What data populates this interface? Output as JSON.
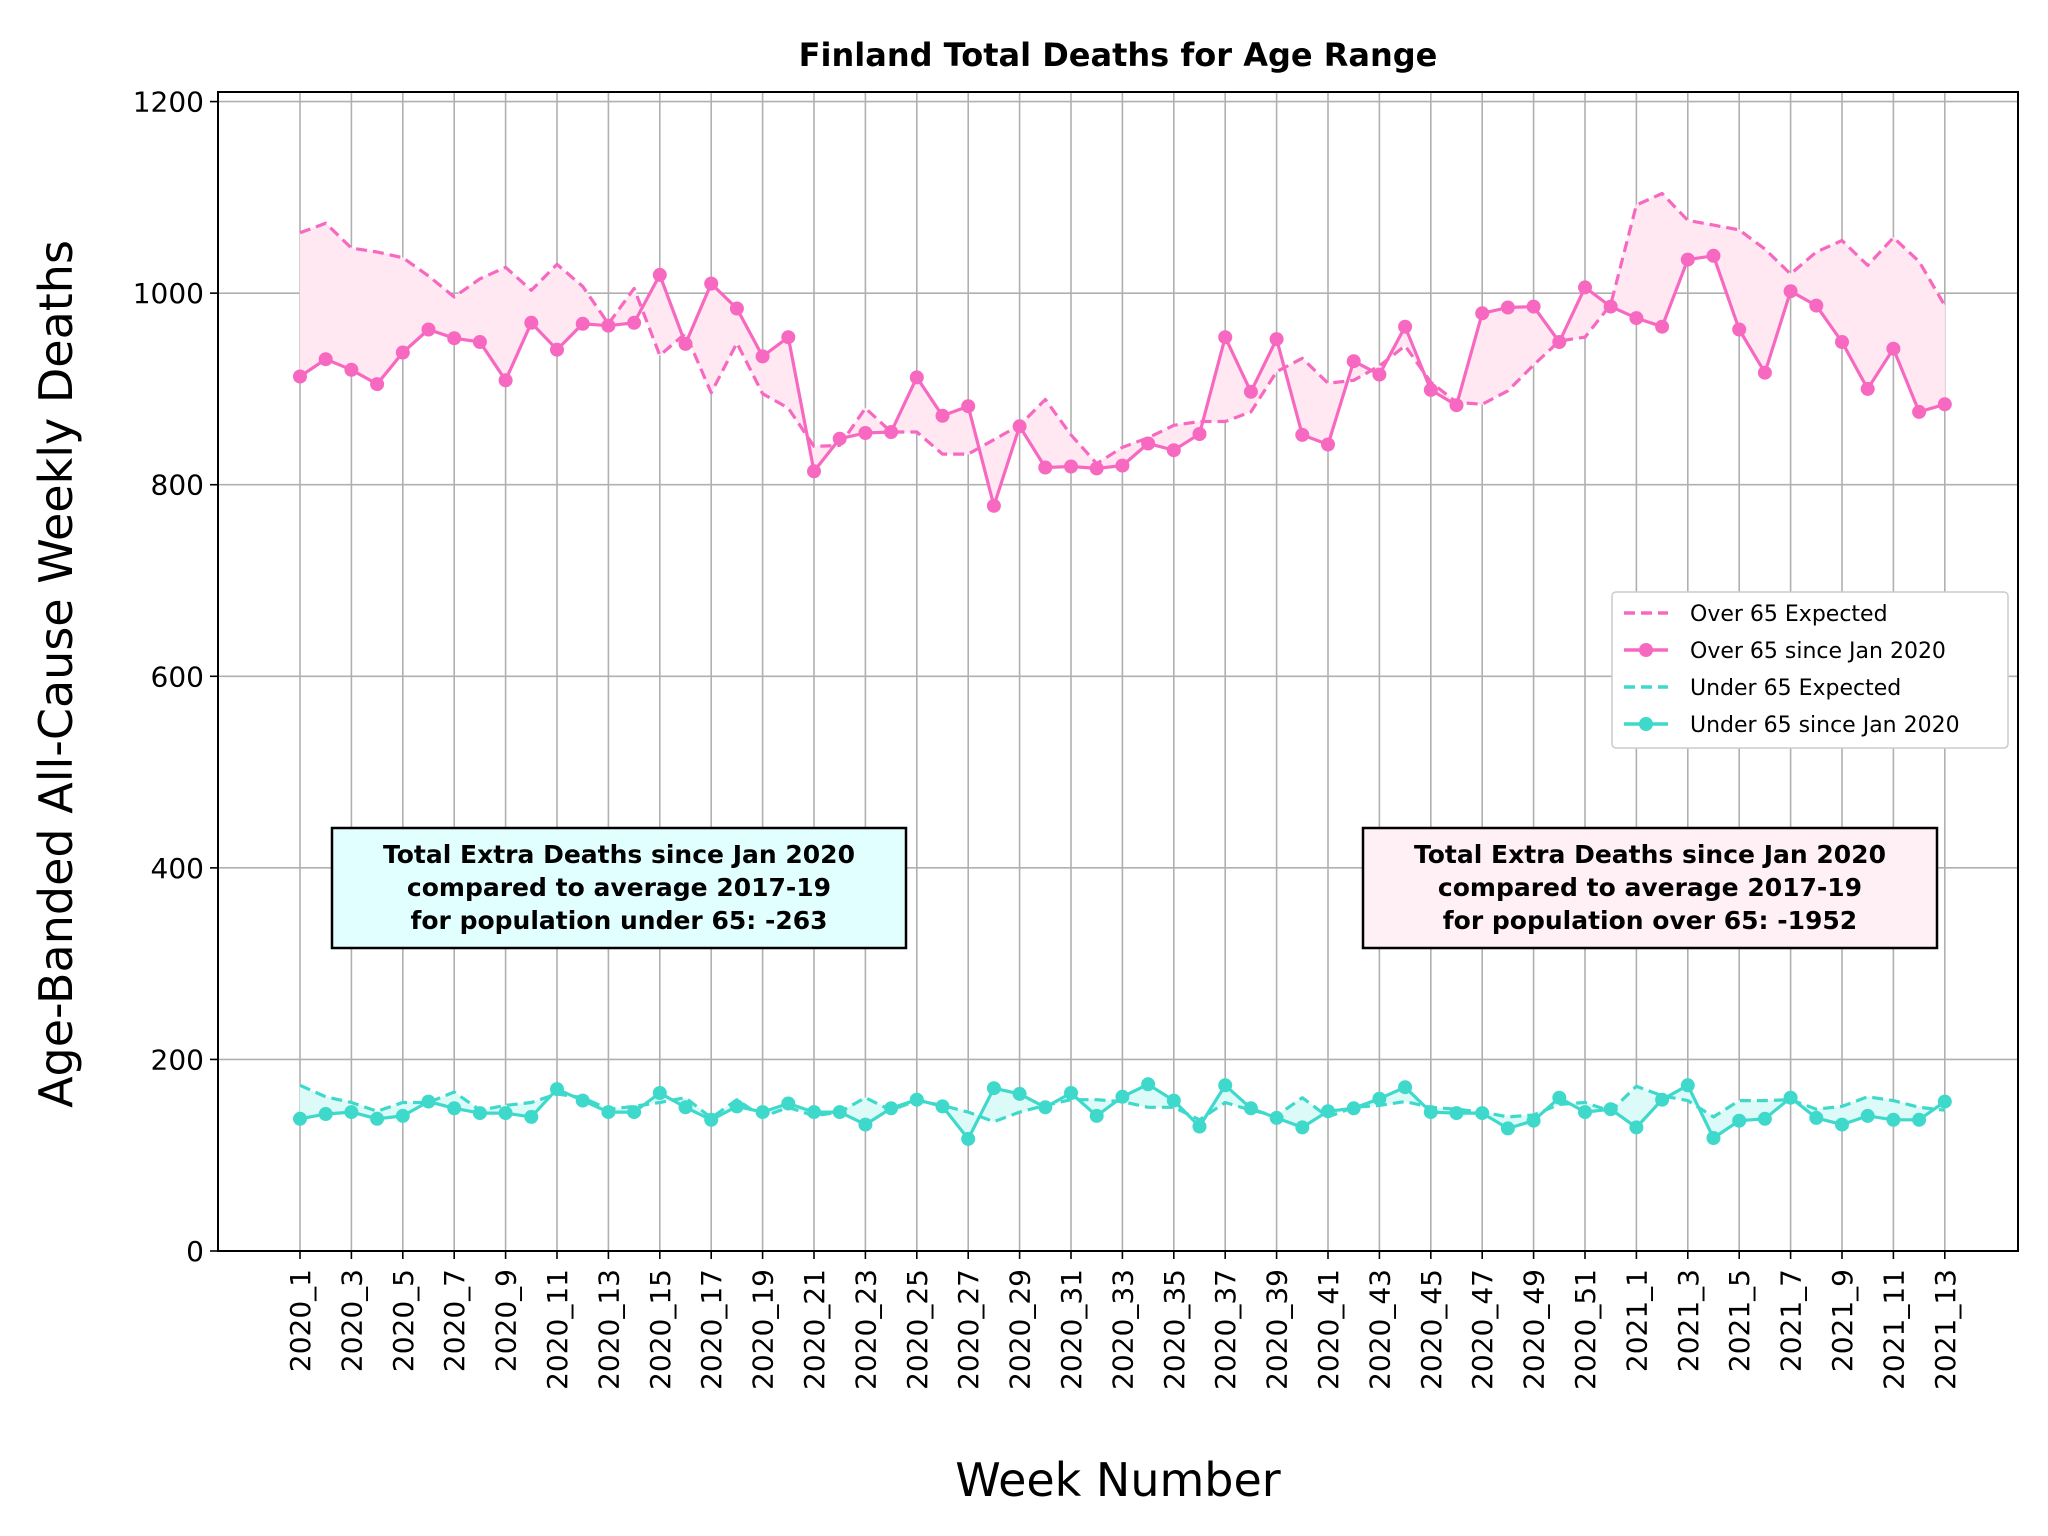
{
  "chart_data": {
    "type": "line",
    "title": "Finland Total Deaths for Age Range",
    "xlabel": "Week Number",
    "ylabel": "Age-Banded All-Cause Weekly Deaths",
    "ylim": [
      0,
      1210
    ],
    "yticks": [
      0,
      200,
      400,
      600,
      800,
      1000,
      1200
    ],
    "grid": true,
    "legend_position": "center-right",
    "categories": [
      "2020_1",
      "2020_2",
      "2020_3",
      "2020_4",
      "2020_5",
      "2020_6",
      "2020_7",
      "2020_8",
      "2020_9",
      "2020_10",
      "2020_11",
      "2020_12",
      "2020_13",
      "2020_14",
      "2020_15",
      "2020_16",
      "2020_17",
      "2020_18",
      "2020_19",
      "2020_20",
      "2020_21",
      "2020_22",
      "2020_23",
      "2020_24",
      "2020_25",
      "2020_26",
      "2020_27",
      "2020_28",
      "2020_29",
      "2020_30",
      "2020_31",
      "2020_32",
      "2020_33",
      "2020_34",
      "2020_35",
      "2020_36",
      "2020_37",
      "2020_38",
      "2020_39",
      "2020_40",
      "2020_41",
      "2020_42",
      "2020_43",
      "2020_44",
      "2020_45",
      "2020_46",
      "2020_47",
      "2020_48",
      "2020_49",
      "2020_50",
      "2020_51",
      "2020_52",
      "2021_1",
      "2021_2",
      "2021_3",
      "2021_4",
      "2021_5",
      "2021_6",
      "2021_7",
      "2021_8",
      "2021_9",
      "2021_10",
      "2021_11",
      "2021_12",
      "2021_13"
    ],
    "tick_labels": [
      "2020_1",
      "2020_3",
      "2020_5",
      "2020_7",
      "2020_9",
      "2020_11",
      "2020_13",
      "2020_15",
      "2020_17",
      "2020_19",
      "2020_21",
      "2020_23",
      "2020_25",
      "2020_27",
      "2020_29",
      "2020_31",
      "2020_33",
      "2020_35",
      "2020_37",
      "2020_39",
      "2020_41",
      "2020_43",
      "2020_45",
      "2020_47",
      "2020_49",
      "2020_51",
      "2021_1",
      "2021_3",
      "2021_5",
      "2021_7",
      "2021_9",
      "2021_11",
      "2021_13"
    ],
    "series": [
      {
        "name": "Over 65 Expected",
        "color": "#f768c0",
        "style": "dashed",
        "values": [
          1063,
          1073,
          1047,
          1043,
          1037,
          1018,
          996,
          1015,
          1027,
          1003,
          1030,
          1007,
          968,
          1005,
          935,
          958,
          896,
          948,
          895,
          880,
          840,
          841,
          880,
          855,
          855,
          832,
          832,
          847,
          862,
          889,
          852,
          822,
          839,
          849,
          862,
          866,
          866,
          876,
          918,
          932,
          906,
          909,
          924,
          945,
          907,
          886,
          884,
          898,
          925,
          950,
          954,
          988,
          1092,
          1104,
          1076,
          1071,
          1066,
          1046,
          1020,
          1043,
          1055,
          1029,
          1058,
          1033,
          987
        ]
      },
      {
        "name": "Over 65 since Jan 2020",
        "color": "#f768c0",
        "style": "solid-marker",
        "values": [
          913,
          931,
          920,
          905,
          938,
          962,
          953,
          949,
          909,
          969,
          941,
          968,
          966,
          969,
          1019,
          947,
          1010,
          984,
          934,
          954,
          814,
          848,
          854,
          855,
          912,
          872,
          882,
          778,
          861,
          818,
          819,
          817,
          820,
          843,
          836,
          853,
          954,
          897,
          952,
          852,
          842,
          929,
          915,
          965,
          899,
          883,
          979,
          985,
          986,
          949,
          1006,
          986,
          974,
          965,
          1035,
          1039,
          962,
          917,
          1002,
          987,
          949,
          900,
          942,
          876,
          884
        ]
      },
      {
        "name": "Under 65 Expected",
        "color": "#3fd9cc",
        "style": "dashed",
        "values": [
          173,
          161,
          155,
          146,
          155,
          155,
          166,
          147,
          152,
          155,
          164,
          160,
          148,
          151,
          155,
          160,
          139,
          158,
          140,
          150,
          141,
          145,
          160,
          147,
          157,
          152,
          145,
          135,
          145,
          152,
          158,
          158,
          156,
          150,
          150,
          137,
          155,
          147,
          141,
          160,
          140,
          150,
          152,
          156,
          150,
          148,
          145,
          140,
          142,
          153,
          155,
          146,
          172,
          162,
          157,
          140,
          157,
          157,
          158,
          148,
          151,
          161,
          157,
          150,
          147
        ]
      },
      {
        "name": "Under 65 since Jan 2020",
        "color": "#3fd9cc",
        "style": "solid-marker",
        "values": [
          138,
          143,
          145,
          138,
          141,
          156,
          149,
          144,
          144,
          140,
          169,
          157,
          145,
          145,
          165,
          150,
          137,
          151,
          145,
          154,
          145,
          145,
          132,
          149,
          158,
          151,
          117,
          170,
          164,
          150,
          165,
          141,
          161,
          174,
          157,
          130,
          173,
          149,
          139,
          129,
          146,
          149,
          159,
          171,
          145,
          144,
          144,
          128,
          136,
          160,
          145,
          148,
          129,
          158,
          173,
          118,
          136,
          138,
          160,
          139,
          132,
          141,
          137,
          137,
          156
        ]
      }
    ],
    "annotations": [
      {
        "lines": [
          "Total Extra Deaths since Jan 2020",
          "compared to average 2017-19",
          "for population under 65: -263"
        ],
        "background": "#e0fffe"
      },
      {
        "lines": [
          "Total Extra Deaths since Jan 2020",
          "compared to average 2017-19",
          "for population over 65: -1952"
        ],
        "background": "#fff0f5"
      }
    ]
  }
}
